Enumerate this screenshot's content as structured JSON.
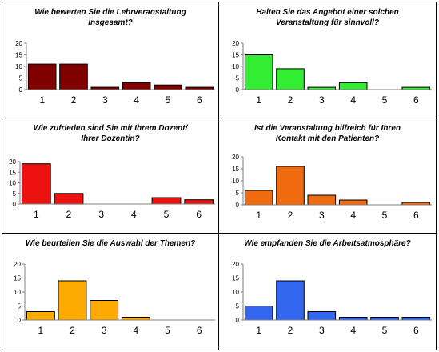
{
  "chart_data": [
    {
      "type": "bar",
      "title": "Wie bewerten Sie die Lehrveranstaltung\ninsgesamt?",
      "categories": [
        "1",
        "2",
        "3",
        "4",
        "5",
        "6"
      ],
      "values": [
        11,
        11,
        1,
        3,
        2,
        1
      ],
      "ylim": [
        0,
        20
      ],
      "yticks": [
        0,
        5,
        10,
        15,
        20
      ],
      "color": "#800000",
      "grid": false,
      "legend": "none"
    },
    {
      "type": "bar",
      "title": "Halten Sie das Angebot einer solchen\nVeranstaltung für sinnvoll?",
      "categories": [
        "1",
        "2",
        "3",
        "4",
        "5",
        "6"
      ],
      "values": [
        15,
        9,
        1,
        3,
        0,
        1
      ],
      "ylim": [
        0,
        20
      ],
      "yticks": [
        0,
        5,
        10,
        15,
        20
      ],
      "color": "#33ee33",
      "grid": false,
      "legend": "none"
    },
    {
      "type": "bar",
      "title": "Wie zufrieden sind Sie mit Ihrem Dozent/\nIhrer Dozentin?",
      "categories": [
        "1",
        "2",
        "3",
        "4",
        "5",
        "6"
      ],
      "values": [
        19,
        5,
        0,
        0,
        3,
        2
      ],
      "ylim": [
        0,
        20
      ],
      "yticks": [
        0,
        5,
        10,
        15,
        20
      ],
      "color": "#ee1111",
      "grid": false,
      "legend": "none"
    },
    {
      "type": "bar",
      "title": "Ist die Veranstaltung hilfreich für Ihren\nKontakt mit den Patienten?",
      "categories": [
        "1",
        "2",
        "3",
        "4",
        "5",
        "6"
      ],
      "values": [
        6,
        16,
        4,
        2,
        0,
        1
      ],
      "ylim": [
        0,
        20
      ],
      "yticks": [
        0,
        5,
        10,
        15,
        20
      ],
      "color": "#f06a10",
      "grid": false,
      "legend": "none"
    },
    {
      "type": "bar",
      "title": "Wie beurteilen Sie die Auswahl der Themen?",
      "categories": [
        "1",
        "2",
        "3",
        "4",
        "5",
        "6"
      ],
      "values": [
        3,
        14,
        7,
        1,
        0,
        0
      ],
      "ylim": [
        0,
        20
      ],
      "yticks": [
        0,
        5,
        10,
        15,
        20
      ],
      "color": "#ffaa00",
      "grid": false,
      "legend": "none"
    },
    {
      "type": "bar",
      "title": "Wie empfanden Sie die Arbeitsatmosphäre?",
      "categories": [
        "1",
        "2",
        "3",
        "4",
        "5",
        "6"
      ],
      "values": [
        5,
        14,
        3,
        1,
        1,
        1
      ],
      "ylim": [
        0,
        20
      ],
      "yticks": [
        0,
        5,
        10,
        15,
        20
      ],
      "color": "#3366ee",
      "grid": false,
      "legend": "none"
    }
  ]
}
